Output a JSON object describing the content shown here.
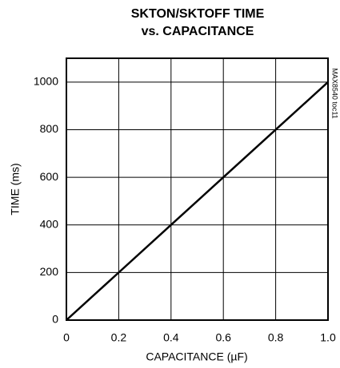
{
  "chart_data": {
    "type": "line",
    "title": [
      "SKTON/SKTOFF TIME",
      "vs. CAPACITANCE"
    ],
    "xlabel": "CAPACITANCE (µF)",
    "ylabel": "TIME (ms)",
    "annotation": "MAX8540 toc11",
    "x": [
      0,
      0.2,
      0.4,
      0.6,
      0.8,
      1
    ],
    "values": [
      0,
      200,
      400,
      600,
      800,
      1000
    ],
    "color": "#000000",
    "xlim": [
      0,
      1
    ],
    "ylim": [
      0,
      1100
    ],
    "xticks": [
      0,
      0.2,
      0.4,
      0.6,
      0.8,
      {
        "value": 1,
        "label": "1.0"
      }
    ],
    "yticks": [
      0,
      200,
      400,
      600,
      800,
      1000
    ],
    "grid": true
  }
}
